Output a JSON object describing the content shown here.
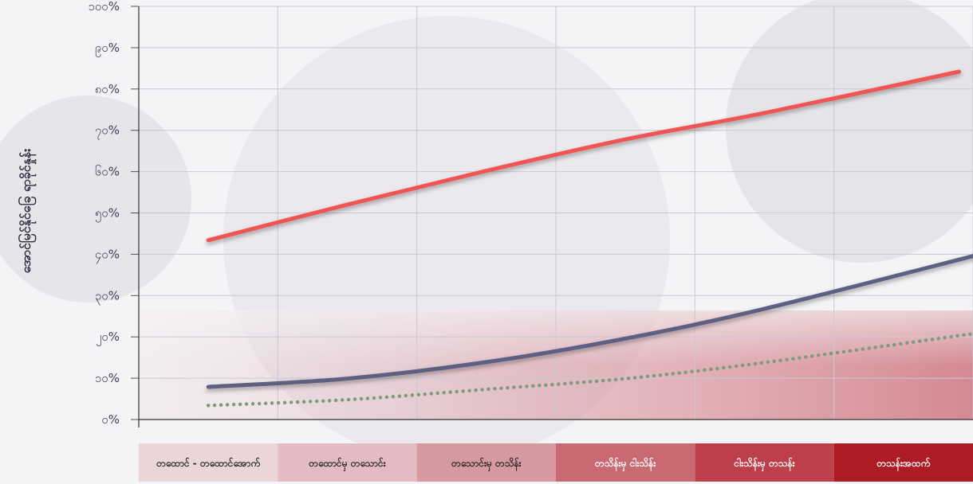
{
  "chart_data": {
    "type": "line",
    "title": "",
    "xlabel": "",
    "ylabel": "အောင်မြင်နိုင်ခြေ ရာခိုင်နှုန်း",
    "ylim": [
      0,
      100
    ],
    "ytick_labels": [
      "၀%",
      "၁၀%",
      "၂၀%",
      "၃၀%",
      "၄၀%",
      "၅၀%",
      "၆၀%",
      "၇၀%",
      "၈၀%",
      "၉၀%",
      "၁၀၀%"
    ],
    "categories": [
      "တထောင် - တထောင်အောက်",
      "တထောင်မှ တသောင်း",
      "တသောင်းမှ တသိန်း",
      "တသိန်းမှ ငါးသိန်း",
      "ငါးသိန်းမှ တသန်း",
      "တသန်းအထက်"
    ],
    "category_colors": [
      "#ead5d9",
      "#e2bcc2",
      "#d799a0",
      "#c96a73",
      "#bd3f4b",
      "#ad1c25"
    ],
    "category_text_colors": [
      "#2b2b2b",
      "#2b2b2b",
      "#2b2b2b",
      "#ffffff",
      "#ffffff",
      "#ffffff"
    ],
    "grid": true,
    "legend": "none",
    "series": [
      {
        "color": "#ef5552",
        "style": "solid",
        "values": [
          43.4,
          52,
          60.2,
          67.8,
          74.2,
          84.2
        ],
        "x_end": 5.4
      },
      {
        "color": "#5e5f82",
        "style": "solid",
        "values": [
          7.9,
          9.9,
          13.9,
          19.6,
          26.8,
          40
        ],
        "x_end": 5.55
      },
      {
        "color": "#7d9b7e",
        "style": "dotted",
        "values": [
          3.4,
          4.8,
          7.3,
          9.9,
          13.8,
          21
        ],
        "x_end": 5.55
      }
    ]
  }
}
